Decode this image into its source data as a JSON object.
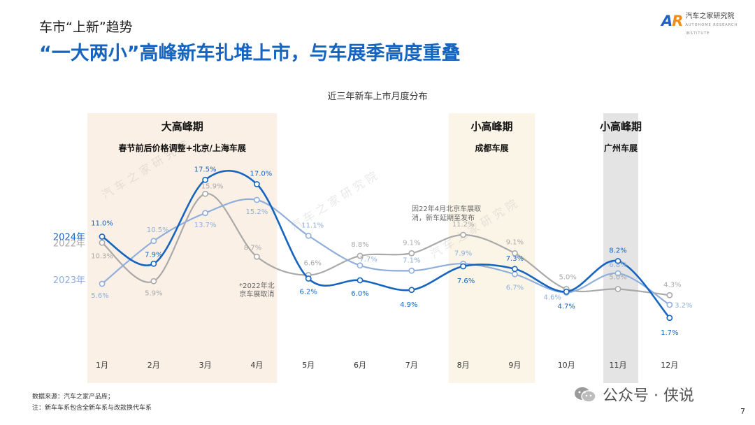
{
  "header": {
    "small_title": "车市“上新”趋势",
    "main_title": "“一大两小”高峰新车扎堆上市，与车展季高度重叠",
    "logo_mark": "AR",
    "logo_text": "汽车之家研究院",
    "logo_sub": "AUTOHOME RESEARCH INSTITUTE"
  },
  "colors": {
    "s2024": "#1565C0",
    "s2022": "#A9A9A9",
    "s2023": "#8FAEDC",
    "peak_big": "#FBF0E5",
    "peak_small": "#FBF5E7",
    "peak_gz": "#E4E4E4"
  },
  "chart_data": {
    "type": "line",
    "title": "近三年新车上市月度分布",
    "categories": [
      "1月",
      "2月",
      "3月",
      "4月",
      "5月",
      "6月",
      "7月",
      "8月",
      "9月",
      "10月",
      "11月",
      "12月"
    ],
    "series": [
      {
        "name": "2024年",
        "values": [
          11.0,
          7.9,
          17.5,
          17.0,
          6.2,
          6.0,
          4.9,
          7.6,
          7.3,
          4.7,
          8.2,
          1.7
        ],
        "labels": [
          "11.0%",
          "7.9%",
          "17.5%",
          "17.0%",
          "6.2%",
          "6.0%",
          "4.9%",
          "7.6%",
          "7.3%",
          "4.7%",
          "8.2%",
          "1.7%"
        ]
      },
      {
        "name": "2022年",
        "values": [
          10.3,
          5.9,
          15.9,
          8.7,
          6.6,
          8.8,
          9.1,
          11.2,
          9.1,
          5.0,
          5.0,
          4.3
        ],
        "labels": [
          "10.3%",
          "5.9%",
          "15.9%",
          "8.7%",
          "6.6%",
          "8.8%",
          "9.1%",
          "11.2%",
          "9.1%",
          "5.0%",
          "5.0%",
          "4.3%"
        ]
      },
      {
        "name": "2023年",
        "values": [
          5.6,
          10.5,
          13.7,
          15.2,
          11.1,
          7.7,
          7.1,
          7.9,
          6.7,
          4.6,
          6.8,
          3.2
        ],
        "labels": [
          "5.6%",
          "10.5%",
          "13.7%",
          "15.2%",
          "11.1%",
          "7.7%",
          "7.1%",
          "7.9%",
          "6.7%",
          "4.6%",
          "6.8%",
          "3.2%"
        ]
      }
    ],
    "periods": [
      {
        "title": "大高峰期",
        "subtitle": "春节前后价格调整+北京/上海车展",
        "months": [
          0,
          3
        ],
        "color_key": "peak_big"
      },
      {
        "title": "小高峰期",
        "subtitle": "成都车展",
        "months": [
          7,
          8
        ],
        "color_key": "peak_small"
      },
      {
        "title": "小高峰期",
        "subtitle": "广州车展",
        "months": [
          10,
          10
        ],
        "color_key": "peak_gz"
      }
    ],
    "annotations": [
      {
        "text": [
          "*2022年北",
          "京车展取消"
        ],
        "month": 3
      },
      {
        "text": [
          "因22年4月北京车展取",
          "消，新车延期至发布"
        ],
        "month": 7
      }
    ],
    "watermark": "汽 车 之 家 研 究 院"
  },
  "footer": {
    "source": "数据来源：汽车之家产品库；",
    "note": "注：新车车系包含全新车系与改款换代车系",
    "wechat": "公众号 · 侠说",
    "page": "7"
  }
}
